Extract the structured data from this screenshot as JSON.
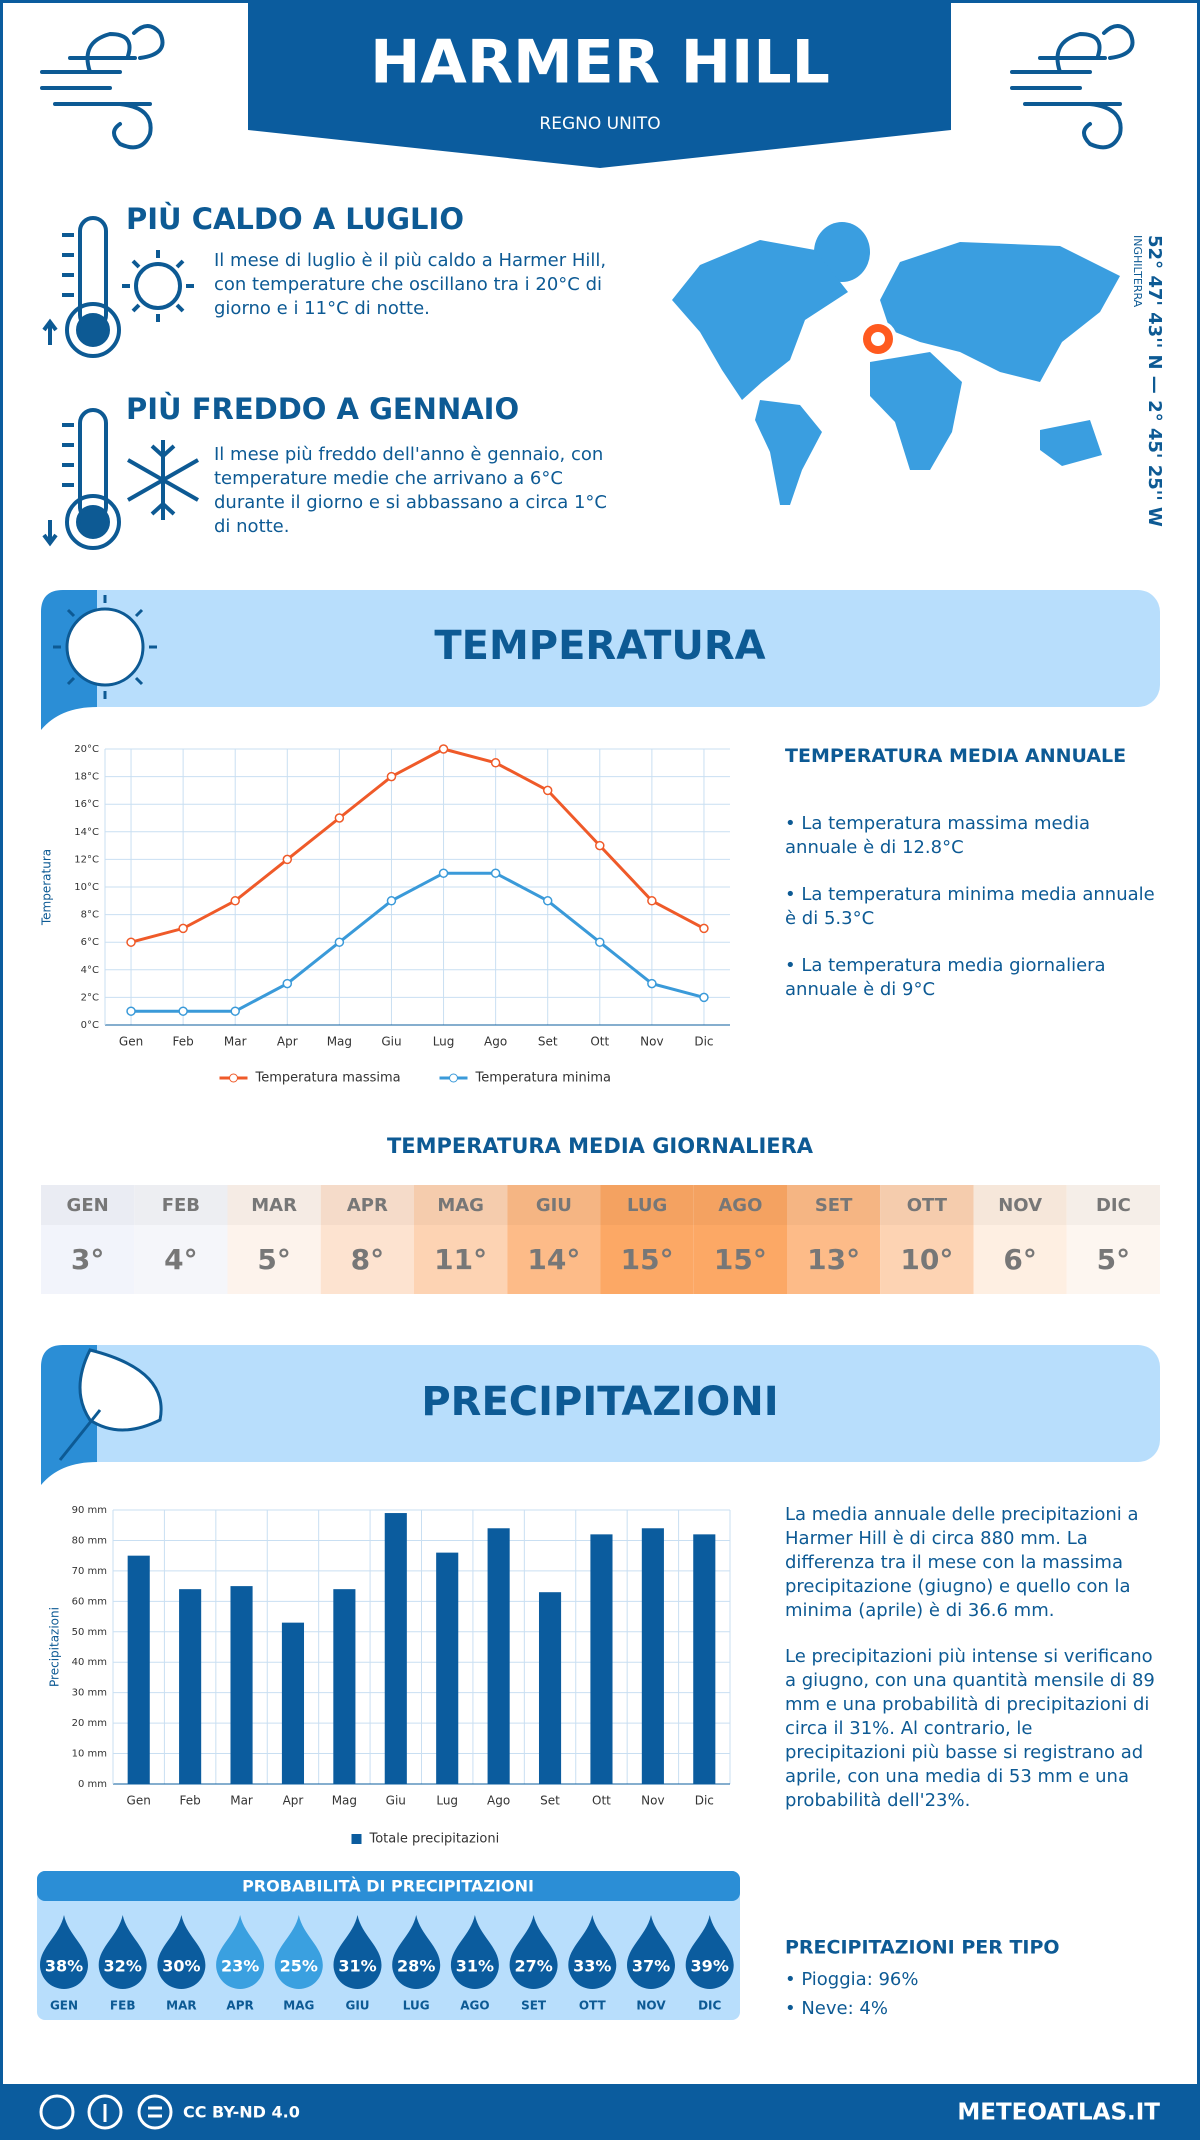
{
  "header": {
    "title": "HARMER HILL",
    "subtitle": "REGNO UNITO"
  },
  "location": {
    "coordinates": "52° 47' 43'' N — 2° 45' 25'' W",
    "region": "INGHILTERRA"
  },
  "warmest": {
    "title": "PIÙ CALDO A LUGLIO",
    "text": "Il mese di luglio è il più caldo a Harmer Hill, con temperature che oscillano tra i 20°C di giorno e i 11°C di notte."
  },
  "coldest": {
    "title": "PIÙ FREDDO A GENNAIO",
    "text": "Il mese più freddo dell'anno è gennaio, con temperature medie che arrivano a 6°C durante il giorno e si abbassano a circa 1°C di notte."
  },
  "temperature_section": {
    "title": "TEMPERATURA"
  },
  "temperature_summary": {
    "title": "TEMPERATURA MEDIA ANNUALE",
    "items": [
      "• La temperatura massima media annuale è di 12.8°C",
      "• La temperatura minima media annuale è di 5.3°C",
      "• La temperatura media giornaliera annuale è di 9°C"
    ]
  },
  "daily_temperature": {
    "title": "TEMPERATURA MEDIA GIORNALIERA",
    "months": [
      "GEN",
      "FEB",
      "MAR",
      "APR",
      "MAG",
      "GIU",
      "LUG",
      "AGO",
      "SET",
      "OTT",
      "NOV",
      "DIC"
    ],
    "values": [
      "3°",
      "4°",
      "5°",
      "8°",
      "11°",
      "14°",
      "15°",
      "15°",
      "13°",
      "10°",
      "6°",
      "5°"
    ],
    "colors": [
      "#f2f4fb",
      "#f5f6fa",
      "#fdf3ec",
      "#fde3d0",
      "#fdd3b3",
      "#fdbb88",
      "#fca865",
      "#fca865",
      "#fdbb88",
      "#fdd3b3",
      "#feefe2",
      "#fdf6f0"
    ]
  },
  "precipitation_section": {
    "title": "PRECIPITAZIONI"
  },
  "precipitation_text": [
    "La media annuale delle precipitazioni a Harmer Hill è di circa 880 mm. La differenza tra il mese con la massima precipitazione (giugno) e quello con la minima (aprile) è di 36.6 mm.",
    "Le precipitazioni più intense si verificano a giugno, con una quantità mensile di 89 mm e una probabilità di precipitazioni di circa il 31%. Al contrario, le precipitazioni più basse si registrano ad aprile, con una media di 53 mm e una probabilità dell'23%."
  ],
  "precipitation_probability": {
    "title": "PROBABILITÀ DI PRECIPITAZIONI",
    "months": [
      "GEN",
      "FEB",
      "MAR",
      "APR",
      "MAG",
      "GIU",
      "LUG",
      "AGO",
      "SET",
      "OTT",
      "NOV",
      "DIC"
    ],
    "values": [
      "38%",
      "32%",
      "30%",
      "23%",
      "25%",
      "31%",
      "28%",
      "31%",
      "27%",
      "33%",
      "37%",
      "39%"
    ],
    "colors": [
      "#0b5c9e",
      "#0b5c9e",
      "#0b5c9e",
      "#3aa0e0",
      "#3aa0e0",
      "#0b5c9e",
      "#0b5c9e",
      "#0b5c9e",
      "#0b5c9e",
      "#0b5c9e",
      "#0b5c9e",
      "#0b5c9e"
    ]
  },
  "precipitation_type": {
    "title": "PRECIPITAZIONI PER TIPO",
    "items": [
      "• Pioggia: 96%",
      "• Neve: 4%"
    ]
  },
  "footer": {
    "license": "CC BY-ND 4.0",
    "site": "METEOATLAS.IT"
  },
  "chart_data": [
    {
      "type": "line",
      "y_label": "Temperatura",
      "categories": [
        "Gen",
        "Feb",
        "Mar",
        "Apr",
        "Mag",
        "Giu",
        "Lug",
        "Ago",
        "Set",
        "Ott",
        "Nov",
        "Dic"
      ],
      "series": [
        {
          "name": "Temperatura massima",
          "color": "#ef5a29",
          "values": [
            6,
            7,
            9,
            12,
            15,
            18,
            20,
            19,
            17,
            13,
            9,
            7
          ]
        },
        {
          "name": "Temperatura minima",
          "color": "#3a9ad9",
          "values": [
            1,
            1,
            1,
            3,
            6,
            9,
            11,
            11,
            9,
            6,
            3,
            2
          ]
        }
      ],
      "ylim": [
        0,
        20
      ],
      "yticks": [
        {
          "value": 0,
          "label": "0°C"
        },
        {
          "value": 2,
          "label": "2°C"
        },
        {
          "value": 4,
          "label": "4°C"
        },
        {
          "value": 6,
          "label": "6°C"
        },
        {
          "value": 8,
          "label": "8°C"
        },
        {
          "value": 10,
          "label": "10°C"
        },
        {
          "value": 12,
          "label": "12°C"
        },
        {
          "value": 14,
          "label": "14°C"
        },
        {
          "value": 16,
          "label": "16°C"
        },
        {
          "value": 18,
          "label": "18°C"
        },
        {
          "value": 20,
          "label": "20°C"
        }
      ],
      "grid": true,
      "legend": "bottom"
    },
    {
      "type": "bar",
      "y_label": "Precipitazioni",
      "categories": [
        "Gen",
        "Feb",
        "Mar",
        "Apr",
        "Mag",
        "Giu",
        "Lug",
        "Ago",
        "Set",
        "Ott",
        "Nov",
        "Dic"
      ],
      "series": [
        {
          "name": "Totale precipitazioni",
          "color": "#0b5c9e",
          "values": [
            75,
            64,
            65,
            53,
            64,
            89,
            76,
            84,
            63,
            82,
            84,
            82
          ]
        }
      ],
      "ylim": [
        0,
        90
      ],
      "yticks": [
        {
          "value": 0,
          "label": "0 mm"
        },
        {
          "value": 10,
          "label": "10 mm"
        },
        {
          "value": 20,
          "label": "20 mm"
        },
        {
          "value": 30,
          "label": "30 mm"
        },
        {
          "value": 40,
          "label": "40 mm"
        },
        {
          "value": 50,
          "label": "50 mm"
        },
        {
          "value": 60,
          "label": "60 mm"
        },
        {
          "value": 70,
          "label": "70 mm"
        },
        {
          "value": 80,
          "label": "80 mm"
        },
        {
          "value": 90,
          "label": "90 mm"
        }
      ],
      "grid": true,
      "legend": "bottom"
    }
  ]
}
